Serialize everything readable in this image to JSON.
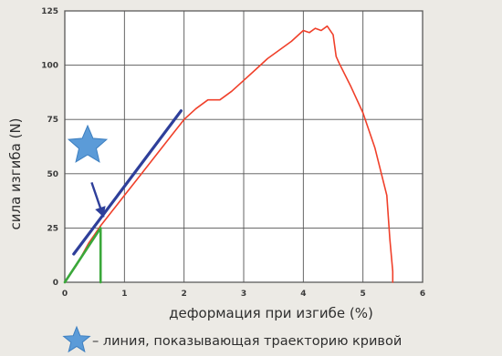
{
  "chart_data": {
    "type": "line",
    "xlabel": "деформация при изгибе (%)",
    "ylabel": "сила изгиба (N)",
    "xlim": [
      0,
      6
    ],
    "ylim": [
      0,
      125
    ],
    "x_ticks": [
      "0",
      "1",
      "2",
      "3",
      "4",
      "5",
      "6"
    ],
    "y_ticks": [
      "0",
      "25",
      "50",
      "75",
      "100",
      "125"
    ],
    "grid": true,
    "colors": {
      "measured": "#f0402a",
      "trend": "#2e3f9a",
      "initial": "#3aa83a",
      "star": "#5b9bd8",
      "arrow": "#2e3f9a"
    },
    "series": [
      {
        "role": "measured",
        "x": [
          0,
          0.1,
          0.2,
          0.3,
          0.4,
          0.5,
          0.6,
          0.8,
          1.0,
          1.2,
          1.4,
          1.6,
          1.8,
          2.0,
          2.2,
          2.4,
          2.6,
          2.8,
          3.0,
          3.2,
          3.4,
          3.6,
          3.8,
          4.0,
          4.1,
          4.2,
          4.3,
          4.4,
          4.5,
          4.55,
          4.6,
          4.8,
          5.0,
          5.2,
          5.4,
          5.45,
          5.5,
          5.5
        ],
        "y": [
          0,
          4,
          8,
          13,
          18,
          22,
          26,
          33,
          40,
          47,
          54,
          61,
          68,
          75,
          80,
          84,
          84,
          88,
          93,
          98,
          103,
          107,
          111,
          116,
          115,
          117,
          116,
          118,
          114,
          104,
          101,
          90,
          78,
          62,
          40,
          20,
          5,
          0
        ]
      },
      {
        "role": "trend",
        "x": [
          0.15,
          1.95
        ],
        "y": [
          13,
          79
        ]
      },
      {
        "role": "initial",
        "x": [
          0,
          0.6,
          0.6
        ],
        "y": [
          0,
          25,
          0
        ]
      }
    ],
    "annotation_arrow": {
      "from": [
        0.45,
        46
      ],
      "to": [
        0.65,
        30
      ]
    },
    "legend": {
      "symbol": "star-icon",
      "text": "– линия, показывающая траекторию кривой"
    }
  }
}
